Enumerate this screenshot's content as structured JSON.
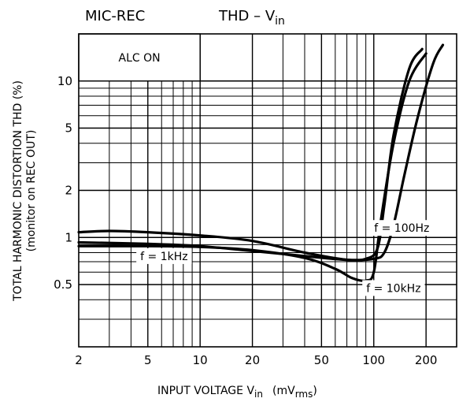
{
  "chart_data": {
    "type": "line",
    "title_left": "MIC-REC",
    "title_right": "THD  –  V",
    "title_right_sub": "in",
    "xlabel": "INPUT VOLTAGE  V",
    "xlabel_sub": "in",
    "xlabel_units_open": "(mV",
    "xlabel_units_sub": "rms",
    "xlabel_units_close": ")",
    "ylabel_line1": "TOTAL HARMONIC DISTORTION  THD    (%)",
    "ylabel_line2": "(monitor on REC OUT)",
    "x_scale": "log",
    "y_scale": "log",
    "xlim": [
      2,
      300
    ],
    "ylim": [
      0.2,
      20
    ],
    "x_ticks": [
      2,
      5,
      10,
      20,
      50,
      100,
      200
    ],
    "x_tick_labels": [
      "2",
      "5",
      "10",
      "20",
      "50",
      "100",
      "200"
    ],
    "y_ticks": [
      0.5,
      1,
      2,
      5,
      10
    ],
    "y_tick_labels": [
      "0.5",
      "1",
      "2",
      "5",
      "10"
    ],
    "grid": true,
    "annotation_box": "ALC ON",
    "series": [
      {
        "name": "f = 1kHz",
        "x": [
          2,
          3,
          5,
          10,
          20,
          40,
          70,
          90,
          105,
          115,
          130,
          160,
          190
        ],
        "y": [
          1.08,
          1.1,
          1.08,
          1.03,
          0.95,
          0.8,
          0.72,
          0.73,
          0.85,
          1.6,
          4.5,
          12,
          16
        ]
      },
      {
        "name": "f = 10kHz",
        "x": [
          2,
          5,
          10,
          20,
          40,
          60,
          75,
          90,
          100,
          110,
          130,
          160,
          200
        ],
        "y": [
          0.88,
          0.88,
          0.87,
          0.83,
          0.74,
          0.63,
          0.55,
          0.53,
          0.6,
          1.3,
          4,
          10,
          15
        ]
      },
      {
        "name": "f = 100Hz",
        "x": [
          2,
          5,
          10,
          20,
          40,
          70,
          100,
          115,
          130,
          150,
          180,
          220,
          250
        ],
        "y": [
          0.93,
          0.91,
          0.88,
          0.82,
          0.76,
          0.72,
          0.73,
          0.8,
          1.2,
          2.5,
          6,
          13,
          17
        ]
      }
    ],
    "series_labels": [
      "f = 1kHz",
      "f = 10kHz",
      "f = 100Hz"
    ]
  }
}
